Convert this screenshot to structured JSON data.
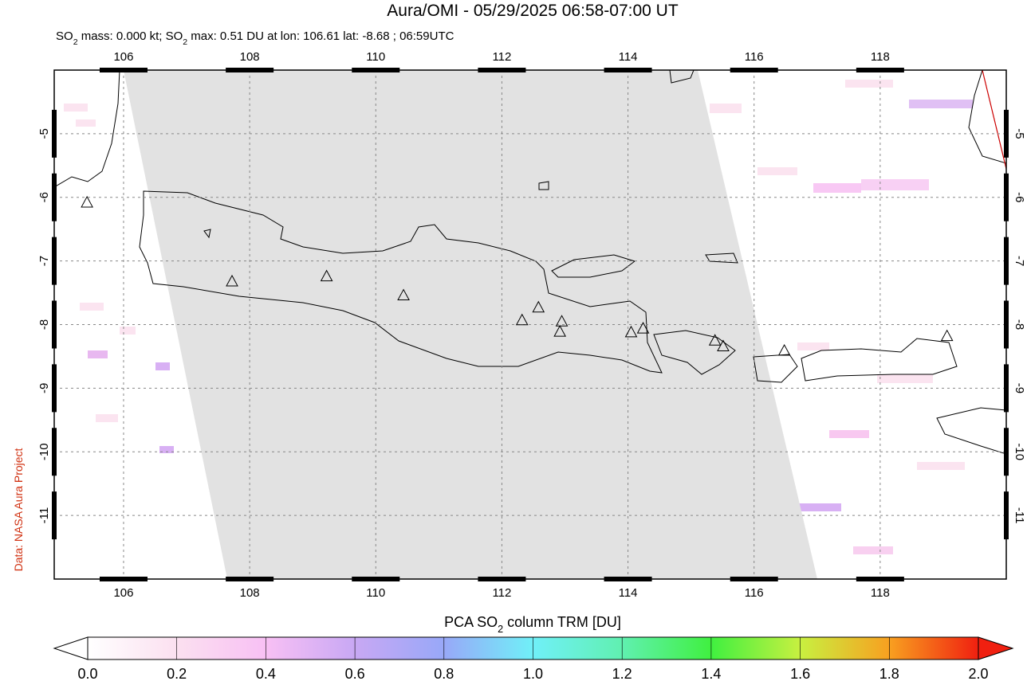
{
  "map": {
    "title": "Aura/OMI - 05/29/2025 06:58-07:00 UT",
    "subtitle_parts": [
      "SO",
      "2",
      " mass: 0.000 kt; SO",
      "2",
      " max: 0.51 DU at lon: 106.61 lat: -8.68 ; 06:59UTC"
    ],
    "credit": "Data: NASA Aura Project",
    "xlim": [
      104.9,
      120
    ],
    "ylim": [
      -12,
      -4
    ],
    "xticks": [
      106,
      108,
      110,
      112,
      114,
      116,
      118
    ],
    "yticks": [
      -5,
      -6,
      -7,
      -8,
      -9,
      -10,
      -11
    ],
    "grid": true,
    "volcanoes": [
      {
        "lon": 105.42,
        "lat": -6.09
      },
      {
        "lon": 107.72,
        "lat": -7.33
      },
      {
        "lon": 109.22,
        "lat": -7.25
      },
      {
        "lon": 110.44,
        "lat": -7.55
      },
      {
        "lon": 112.32,
        "lat": -7.94
      },
      {
        "lon": 112.58,
        "lat": -7.74
      },
      {
        "lon": 112.95,
        "lat": -7.96
      },
      {
        "lon": 112.92,
        "lat": -8.12
      },
      {
        "lon": 114.05,
        "lat": -8.13
      },
      {
        "lon": 114.24,
        "lat": -8.07
      },
      {
        "lon": 115.38,
        "lat": -8.26
      },
      {
        "lon": 115.51,
        "lat": -8.35
      },
      {
        "lon": 116.48,
        "lat": -8.42
      },
      {
        "lon": 119.06,
        "lat": -8.19
      }
    ]
  },
  "colorbar": {
    "label_parts": [
      "PCA SO",
      "2",
      " column TRM [DU]"
    ],
    "lim": [
      0,
      2
    ],
    "ticks": [
      {
        "value": 0,
        "label": "0.0"
      },
      0.2,
      0.4,
      0.6,
      0.8,
      {
        "value": 1,
        "label": "1.0"
      },
      1.2,
      1.4,
      1.6,
      1.8,
      {
        "value": 2,
        "label": "2.0"
      }
    ]
  }
}
